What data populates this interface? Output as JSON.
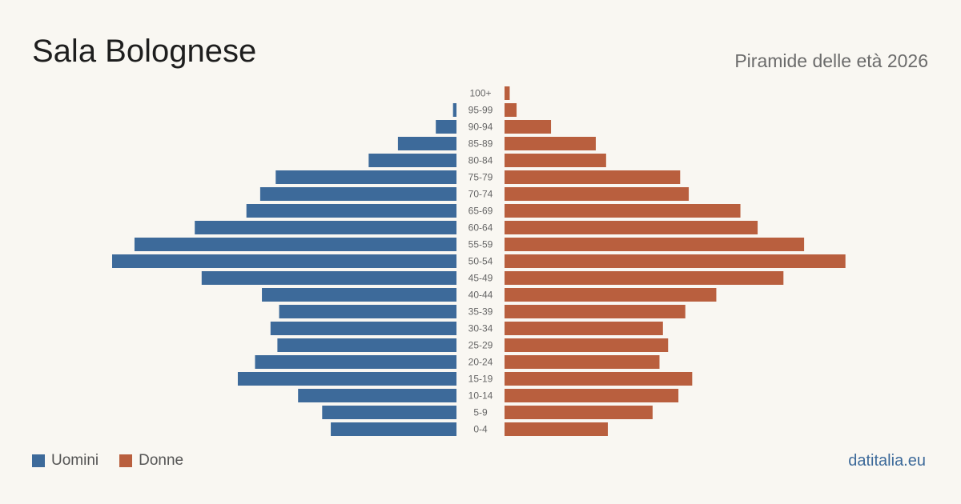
{
  "title": "Sala Bolognese",
  "subtitle": "Piramide delle età 2026",
  "source": "datitalia.eu",
  "colors": {
    "male": "#3d6a9a",
    "female": "#b95f3e",
    "background": "#f9f7f2"
  },
  "chart_data": {
    "type": "bar",
    "orientation": "horizontal-pyramid",
    "categories": [
      "100+",
      "95-99",
      "90-94",
      "85-89",
      "80-84",
      "75-79",
      "70-74",
      "65-69",
      "60-64",
      "55-59",
      "50-54",
      "45-49",
      "40-44",
      "35-39",
      "30-34",
      "25-29",
      "20-24",
      "15-19",
      "10-14",
      "5-9",
      "0-4"
    ],
    "series": [
      {
        "name": "Uomini",
        "values": [
          0,
          2,
          12,
          34,
          51,
          105,
          114,
          122,
          152,
          187,
          200,
          148,
          113,
          103,
          108,
          104,
          117,
          127,
          92,
          78,
          73
        ]
      },
      {
        "name": "Donne",
        "values": [
          3,
          7,
          27,
          53,
          59,
          102,
          107,
          137,
          147,
          174,
          198,
          162,
          123,
          105,
          92,
          95,
          90,
          109,
          101,
          86,
          60
        ]
      }
    ],
    "legend": "bottom-left"
  }
}
